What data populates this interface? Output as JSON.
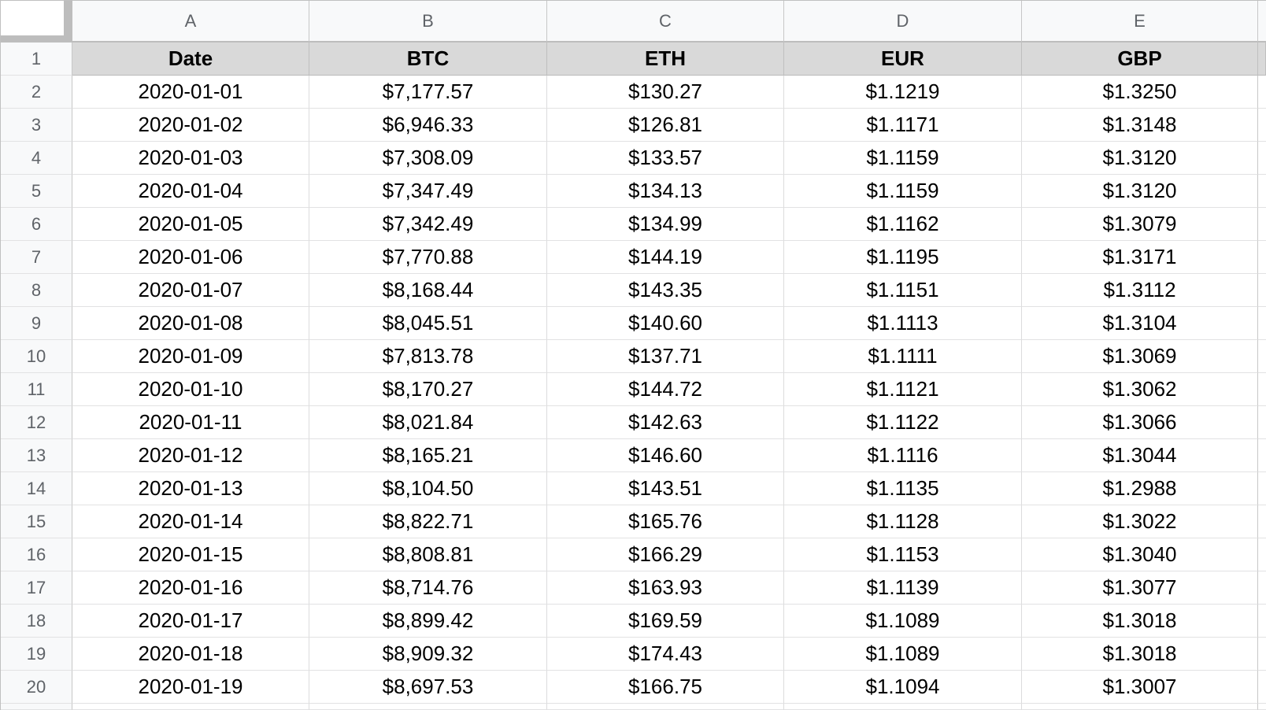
{
  "sheet": {
    "corner_label": "",
    "column_letters": [
      "A",
      "B",
      "C",
      "D",
      "E"
    ],
    "row_numbers": [
      "1",
      "2",
      "3",
      "4",
      "5",
      "6",
      "7",
      "8",
      "9",
      "10",
      "11",
      "12",
      "13",
      "14",
      "15",
      "16",
      "17",
      "18",
      "19",
      "20"
    ],
    "frozen_header": [
      "Date",
      "BTC",
      "ETH",
      "EUR",
      "GBP"
    ],
    "rows": [
      [
        "2020-01-01",
        "$7,177.57",
        "$130.27",
        "$1.1219",
        "$1.3250"
      ],
      [
        "2020-01-02",
        "$6,946.33",
        "$126.81",
        "$1.1171",
        "$1.3148"
      ],
      [
        "2020-01-03",
        "$7,308.09",
        "$133.57",
        "$1.1159",
        "$1.3120"
      ],
      [
        "2020-01-04",
        "$7,347.49",
        "$134.13",
        "$1.1159",
        "$1.3120"
      ],
      [
        "2020-01-05",
        "$7,342.49",
        "$134.99",
        "$1.1162",
        "$1.3079"
      ],
      [
        "2020-01-06",
        "$7,770.88",
        "$144.19",
        "$1.1195",
        "$1.3171"
      ],
      [
        "2020-01-07",
        "$8,168.44",
        "$143.35",
        "$1.1151",
        "$1.3112"
      ],
      [
        "2020-01-08",
        "$8,045.51",
        "$140.60",
        "$1.1113",
        "$1.3104"
      ],
      [
        "2020-01-09",
        "$7,813.78",
        "$137.71",
        "$1.1111",
        "$1.3069"
      ],
      [
        "2020-01-10",
        "$8,170.27",
        "$144.72",
        "$1.1121",
        "$1.3062"
      ],
      [
        "2020-01-11",
        "$8,021.84",
        "$142.63",
        "$1.1122",
        "$1.3066"
      ],
      [
        "2020-01-12",
        "$8,165.21",
        "$146.60",
        "$1.1116",
        "$1.3044"
      ],
      [
        "2020-01-13",
        "$8,104.50",
        "$143.51",
        "$1.1135",
        "$1.2988"
      ],
      [
        "2020-01-14",
        "$8,822.71",
        "$165.76",
        "$1.1128",
        "$1.3022"
      ],
      [
        "2020-01-15",
        "$8,808.81",
        "$166.29",
        "$1.1153",
        "$1.3040"
      ],
      [
        "2020-01-16",
        "$8,714.76",
        "$163.93",
        "$1.1139",
        "$1.3077"
      ],
      [
        "2020-01-17",
        "$8,899.42",
        "$169.59",
        "$1.1089",
        "$1.3018"
      ],
      [
        "2020-01-18",
        "$8,909.32",
        "$174.43",
        "$1.1089",
        "$1.3018"
      ],
      [
        "2020-01-19",
        "$8,697.53",
        "$166.75",
        "$1.1094",
        "$1.3007"
      ]
    ]
  },
  "colors": {
    "frozen_row_bg": "#d9d9d9",
    "gutter_bg": "#f8f9fa",
    "grid_line": "#e2e2e3",
    "gutter_text": "#5f6368",
    "frozen_border": "#bdbdbd"
  }
}
